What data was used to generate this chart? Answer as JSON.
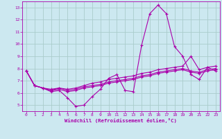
{
  "xlabel": "Windchill (Refroidissement éolien,°C)",
  "x_values": [
    0,
    1,
    2,
    3,
    4,
    5,
    6,
    7,
    8,
    9,
    10,
    11,
    12,
    13,
    14,
    15,
    16,
    17,
    18,
    19,
    20,
    21,
    22,
    23
  ],
  "line1": [
    7.8,
    6.6,
    6.4,
    6.1,
    6.2,
    5.6,
    4.9,
    5.0,
    5.7,
    6.3,
    7.2,
    7.5,
    6.2,
    6.1,
    9.9,
    12.5,
    13.2,
    12.5,
    9.8,
    9.0,
    7.5,
    7.1,
    8.1,
    7.8
  ],
  "line2": [
    7.8,
    6.6,
    6.4,
    6.2,
    6.3,
    6.1,
    6.2,
    6.4,
    6.5,
    6.6,
    6.8,
    6.9,
    7.0,
    7.1,
    7.3,
    7.4,
    7.6,
    7.7,
    7.8,
    7.9,
    7.7,
    7.6,
    7.8,
    7.9
  ],
  "line3": [
    7.8,
    6.6,
    6.4,
    6.2,
    6.4,
    6.2,
    6.3,
    6.5,
    6.6,
    6.7,
    6.9,
    7.0,
    7.1,
    7.2,
    7.4,
    7.5,
    7.7,
    7.8,
    7.9,
    8.0,
    7.8,
    7.7,
    7.9,
    8.0
  ],
  "line4": [
    7.8,
    6.6,
    6.4,
    6.3,
    6.4,
    6.3,
    6.4,
    6.6,
    6.8,
    6.9,
    7.1,
    7.2,
    7.3,
    7.4,
    7.6,
    7.7,
    7.9,
    8.0,
    8.1,
    8.2,
    9.0,
    7.9,
    8.1,
    8.2
  ],
  "line_color": "#aa00aa",
  "bg_color": "#cce8f0",
  "grid_color": "#aacccc",
  "yticks": [
    5,
    6,
    7,
    8,
    9,
    10,
    11,
    12,
    13
  ],
  "xticks": [
    0,
    1,
    2,
    3,
    4,
    5,
    6,
    7,
    8,
    9,
    10,
    11,
    12,
    13,
    14,
    15,
    16,
    17,
    18,
    19,
    20,
    21,
    22,
    23
  ]
}
